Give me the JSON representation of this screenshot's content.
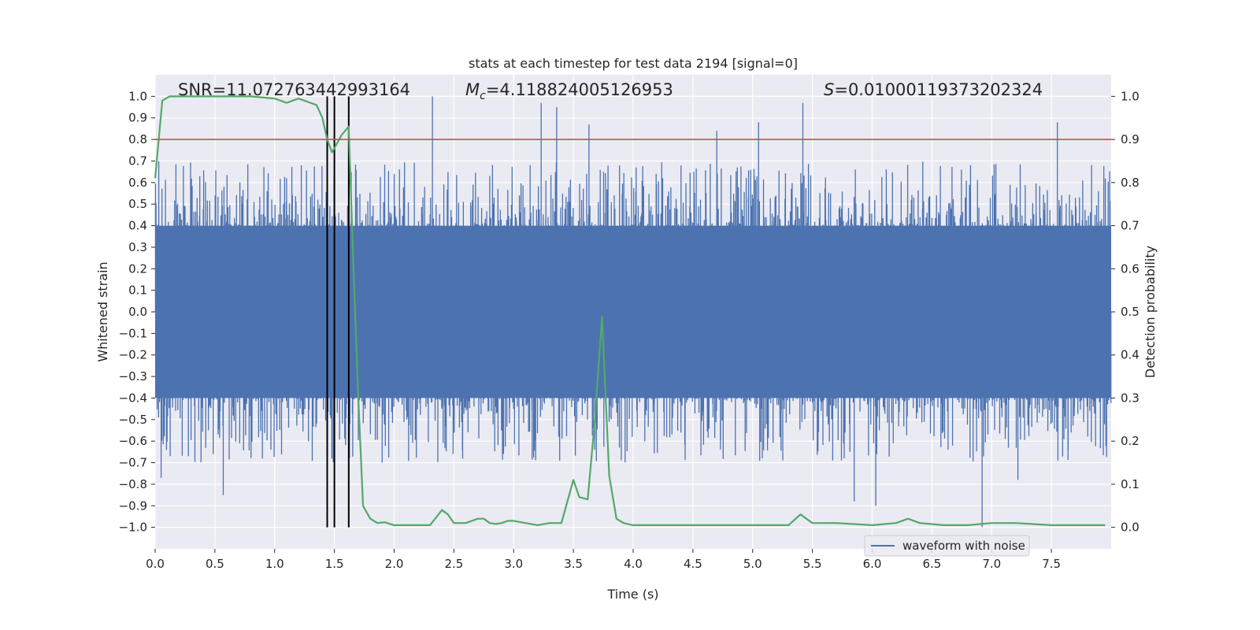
{
  "chart_data": {
    "type": "line",
    "title": "stats at each timestep for test data 2194 [signal=0]",
    "xlabel": "Time (s)",
    "ylabel": "Whitened strain",
    "y2label": "Detection probability",
    "xlim": [
      0.0,
      8.0
    ],
    "ylim": [
      -1.1,
      1.1
    ],
    "y2lim": [
      -0.05,
      1.05
    ],
    "xticks": [
      "0.0",
      "0.5",
      "1.0",
      "1.5",
      "2.0",
      "2.5",
      "3.0",
      "3.5",
      "4.0",
      "4.5",
      "5.0",
      "5.5",
      "6.0",
      "6.5",
      "7.0",
      "7.5"
    ],
    "yticks": [
      "1.0",
      "0.9",
      "0.8",
      "0.7",
      "0.6",
      "0.5",
      "0.4",
      "0.3",
      "0.2",
      "0.1",
      "0.0",
      "−0.1",
      "−0.2",
      "−0.3",
      "−0.4",
      "−0.5",
      "−0.6",
      "−0.7",
      "−0.8",
      "−0.9",
      "−1.0"
    ],
    "y2ticks": [
      "1.0",
      "0.9",
      "0.8",
      "0.7",
      "0.6",
      "0.5",
      "0.4",
      "0.3",
      "0.2",
      "0.1",
      "0.0"
    ],
    "annotations": {
      "snr": "SNR=11.072763442993164",
      "mc_symbol": "M",
      "mc_sub": "c",
      "mc_value": "=4.118824005126953",
      "s_symbol": "S",
      "s_value": "=0.01000119373202324"
    },
    "threshold": {
      "y2": 0.9,
      "color": "#c44e52"
    },
    "vlines_x": [
      1.44,
      1.5,
      1.62
    ],
    "vline_range": [
      -1.0,
      1.0
    ],
    "legend": [
      {
        "label": "waveform with noise",
        "color": "#4c72b0"
      }
    ],
    "series": [
      {
        "name": "waveform with noise",
        "axis": "left",
        "color": "#4c72b0",
        "kind": "noise-waveform",
        "core_amplitude": 0.4,
        "typical_extreme": 0.65,
        "peaks": [
          {
            "x": 0.05,
            "y": -0.77
          },
          {
            "x": 0.57,
            "y": -0.85
          },
          {
            "x": 1.1,
            "y": 0.62
          },
          {
            "x": 2.32,
            "y": 1.0
          },
          {
            "x": 3.23,
            "y": 0.97
          },
          {
            "x": 3.36,
            "y": 0.95
          },
          {
            "x": 3.63,
            "y": 0.87
          },
          {
            "x": 4.7,
            "y": 0.84
          },
          {
            "x": 5.05,
            "y": 0.88
          },
          {
            "x": 5.42,
            "y": 0.97
          },
          {
            "x": 5.85,
            "y": -0.88
          },
          {
            "x": 6.03,
            "y": -0.9
          },
          {
            "x": 6.92,
            "y": -1.0
          },
          {
            "x": 7.55,
            "y": 0.88
          },
          {
            "x": 7.22,
            "y": -0.78
          }
        ]
      },
      {
        "name": "detection probability",
        "axis": "right",
        "color": "#55a868",
        "x": [
          0.0,
          0.06,
          0.12,
          0.2,
          0.4,
          0.6,
          0.8,
          1.0,
          1.05,
          1.1,
          1.15,
          1.2,
          1.25,
          1.3,
          1.35,
          1.4,
          1.44,
          1.48,
          1.52,
          1.56,
          1.62,
          1.66,
          1.7,
          1.74,
          1.8,
          1.86,
          1.92,
          2.0,
          2.1,
          2.2,
          2.3,
          2.4,
          2.45,
          2.5,
          2.6,
          2.7,
          2.75,
          2.8,
          2.85,
          2.9,
          2.95,
          3.0,
          3.1,
          3.2,
          3.3,
          3.4,
          3.45,
          3.5,
          3.55,
          3.62,
          3.68,
          3.74,
          3.8,
          3.86,
          3.92,
          4.0,
          4.2,
          4.5,
          5.0,
          5.3,
          5.4,
          5.5,
          5.7,
          6.0,
          6.2,
          6.3,
          6.4,
          6.6,
          6.8,
          7.0,
          7.2,
          7.5,
          7.8,
          7.95
        ],
        "y": [
          0.81,
          0.99,
          1.0,
          1.0,
          1.0,
          1.0,
          1.0,
          0.995,
          0.99,
          0.985,
          0.99,
          0.995,
          0.99,
          0.985,
          0.98,
          0.95,
          0.9,
          0.87,
          0.89,
          0.91,
          0.93,
          0.6,
          0.3,
          0.05,
          0.02,
          0.01,
          0.012,
          0.005,
          0.005,
          0.005,
          0.005,
          0.04,
          0.03,
          0.01,
          0.01,
          0.02,
          0.02,
          0.01,
          0.008,
          0.01,
          0.015,
          0.015,
          0.01,
          0.005,
          0.01,
          0.01,
          0.06,
          0.11,
          0.07,
          0.065,
          0.25,
          0.49,
          0.12,
          0.02,
          0.01,
          0.005,
          0.005,
          0.005,
          0.005,
          0.005,
          0.03,
          0.01,
          0.01,
          0.005,
          0.01,
          0.02,
          0.01,
          0.005,
          0.005,
          0.01,
          0.01,
          0.005,
          0.005,
          0.005
        ]
      }
    ]
  }
}
